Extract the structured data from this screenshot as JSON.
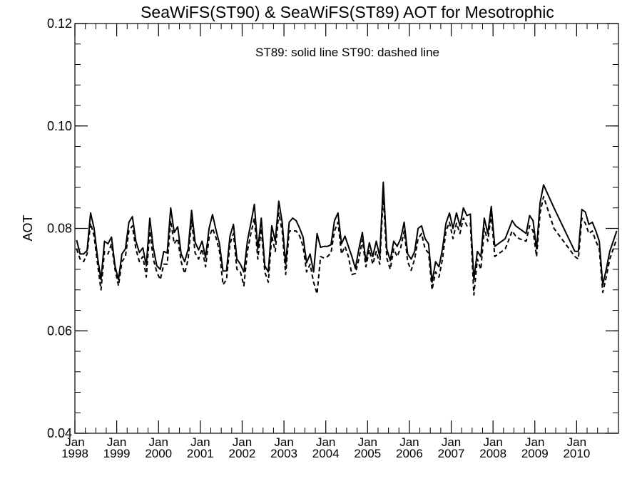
{
  "chart_data": {
    "type": "line",
    "title": "SeaWiFS(ST90) & SeaWiFS(ST89)  AOT for Mesotrophic",
    "annotation": "ST89: solid line   ST90: dashed line",
    "xlabel": "",
    "ylabel": "AOT",
    "x_range": [
      "1998-01",
      "2010-12"
    ],
    "ylim": [
      0.04,
      0.12
    ],
    "y_ticks": [
      "0.04",
      "0.06",
      "0.08",
      "0.10",
      "0.12"
    ],
    "x_ticks": [
      {
        "date": "1998-01",
        "label_top": "Jan",
        "label_bottom": "1998"
      },
      {
        "date": "1999-01",
        "label_top": "Jan",
        "label_bottom": "1999"
      },
      {
        "date": "2000-01",
        "label_top": "Jan",
        "label_bottom": "2000"
      },
      {
        "date": "2001-01",
        "label_top": "Jan",
        "label_bottom": "2001"
      },
      {
        "date": "2002-01",
        "label_top": "Jan",
        "label_bottom": "2002"
      },
      {
        "date": "2003-01",
        "label_top": "Jan",
        "label_bottom": "2003"
      },
      {
        "date": "2004-01",
        "label_top": "Jan",
        "label_bottom": "2004"
      },
      {
        "date": "2005-01",
        "label_top": "Jan",
        "label_bottom": "2005"
      },
      {
        "date": "2006-01",
        "label_top": "Jan",
        "label_bottom": "2006"
      },
      {
        "date": "2007-01",
        "label_top": "Jan",
        "label_bottom": "2007"
      },
      {
        "date": "2008-01",
        "label_top": "Jan",
        "label_bottom": "2008"
      },
      {
        "date": "2009-01",
        "label_top": "Jan",
        "label_bottom": "2009"
      },
      {
        "date": "2010-01",
        "label_top": "Jan",
        "label_bottom": "2010"
      }
    ],
    "grid": false,
    "legend": "none",
    "series": [
      {
        "name": "ST89",
        "style": "solid",
        "color": "#000000",
        "x": [
          "1998-01",
          "1998-02",
          "1998-03",
          "1998-04",
          "1998-05",
          "1998-06",
          "1998-07",
          "1998-08",
          "1998-09",
          "1998-10",
          "1998-11",
          "1998-12",
          "1999-01",
          "1999-02",
          "1999-03",
          "1999-04",
          "1999-05",
          "1999-06",
          "1999-07",
          "1999-08",
          "1999-09",
          "1999-10",
          "1999-11",
          "1999-12",
          "2000-01",
          "2000-02",
          "2000-03",
          "2000-04",
          "2000-05",
          "2000-06",
          "2000-07",
          "2000-08",
          "2000-09",
          "2000-10",
          "2000-11",
          "2000-12",
          "2001-01",
          "2001-02",
          "2001-03",
          "2001-04",
          "2001-05",
          "2001-06",
          "2001-07",
          "2001-08",
          "2001-09",
          "2001-10",
          "2001-11",
          "2001-12",
          "2002-01",
          "2002-02",
          "2002-03",
          "2002-04",
          "2002-05",
          "2002-06",
          "2002-07",
          "2002-08",
          "2002-09",
          "2002-10",
          "2002-11",
          "2002-12",
          "2003-01",
          "2003-02",
          "2003-03",
          "2003-04",
          "2003-05",
          "2003-06",
          "2003-07",
          "2003-08",
          "2003-09",
          "2003-10",
          "2003-11",
          "2003-12",
          "2004-01",
          "2004-02",
          "2004-03",
          "2004-04",
          "2004-05",
          "2004-06",
          "2004-07",
          "2004-08",
          "2004-09",
          "2004-10",
          "2004-11",
          "2004-12",
          "2005-01",
          "2005-02",
          "2005-03",
          "2005-04",
          "2005-05",
          "2005-06",
          "2005-07",
          "2005-08",
          "2005-09",
          "2005-10",
          "2005-11",
          "2005-12",
          "2006-01",
          "2006-02",
          "2006-03",
          "2006-04",
          "2006-05",
          "2006-06",
          "2006-07",
          "2006-08",
          "2006-09",
          "2006-10",
          "2006-11",
          "2006-12",
          "2007-01",
          "2007-02",
          "2007-03",
          "2007-04",
          "2007-05",
          "2007-06",
          "2007-07",
          "2007-08",
          "2007-09",
          "2007-10",
          "2007-11",
          "2007-12",
          "2008-01",
          "2008-04",
          "2008-06",
          "2008-07",
          "2008-08",
          "2008-10",
          "2008-11",
          "2008-12",
          "2009-01",
          "2009-02",
          "2009-03",
          "2009-06",
          "2009-12",
          "2010-01",
          "2010-02",
          "2010-03",
          "2010-04",
          "2010-05",
          "2010-06",
          "2010-07",
          "2010-08",
          "2010-09",
          "2010-10",
          "2010-11",
          "2010-12"
        ],
        "y": [
          0.0777,
          0.075,
          0.075,
          0.0757,
          0.083,
          0.08,
          0.0743,
          0.07,
          0.0775,
          0.077,
          0.0783,
          0.0727,
          0.07,
          0.075,
          0.076,
          0.0812,
          0.0823,
          0.0775,
          0.0753,
          0.0762,
          0.0727,
          0.082,
          0.0762,
          0.0727,
          0.072,
          0.0755,
          0.0752,
          0.084,
          0.0792,
          0.0803,
          0.075,
          0.0735,
          0.076,
          0.0835,
          0.0773,
          0.0758,
          0.0775,
          0.0743,
          0.08,
          0.0827,
          0.0797,
          0.077,
          0.0717,
          0.0717,
          0.0785,
          0.0808,
          0.074,
          0.073,
          0.0715,
          0.0775,
          0.081,
          0.0847,
          0.076,
          0.082,
          0.0727,
          0.0715,
          0.0805,
          0.0775,
          0.0853,
          0.0812,
          0.073,
          0.0812,
          0.082,
          0.0815,
          0.08,
          0.0783,
          0.0733,
          0.075,
          0.0715,
          0.079,
          0.0763,
          0.0765,
          0.0765,
          0.0768,
          0.0815,
          0.083,
          0.077,
          0.0785,
          0.0765,
          0.0745,
          0.0722,
          0.076,
          0.0792,
          0.0735,
          0.0772,
          0.0745,
          0.0775,
          0.0745,
          0.089,
          0.076,
          0.0737,
          0.0775,
          0.0765,
          0.078,
          0.0812,
          0.075,
          0.074,
          0.0755,
          0.08,
          0.0805,
          0.078,
          0.077,
          0.0695,
          0.0735,
          0.0725,
          0.076,
          0.081,
          0.083,
          0.08,
          0.083,
          0.0805,
          0.084,
          0.0825,
          0.0828,
          0.07,
          0.0755,
          0.0745,
          0.082,
          0.079,
          0.0843,
          0.0765,
          0.078,
          0.0815,
          0.0805,
          0.08,
          0.079,
          0.0825,
          0.0815,
          0.076,
          0.085,
          0.0885,
          0.084,
          0.0755,
          0.0755,
          0.0837,
          0.0832,
          0.0808,
          0.0812,
          0.0795,
          0.0775,
          0.069,
          0.072,
          0.0755,
          0.0775,
          0.0795
        ]
      },
      {
        "name": "ST90",
        "style": "dashed",
        "color": "#000000",
        "x": [
          "1998-01",
          "1998-02",
          "1998-03",
          "1998-04",
          "1998-05",
          "1998-06",
          "1998-07",
          "1998-08",
          "1998-09",
          "1998-10",
          "1998-11",
          "1998-12",
          "1999-01",
          "1999-02",
          "1999-03",
          "1999-04",
          "1999-05",
          "1999-06",
          "1999-07",
          "1999-08",
          "1999-09",
          "1999-10",
          "1999-11",
          "1999-12",
          "2000-01",
          "2000-02",
          "2000-03",
          "2000-04",
          "2000-05",
          "2000-06",
          "2000-07",
          "2000-08",
          "2000-09",
          "2000-10",
          "2000-11",
          "2000-12",
          "2001-01",
          "2001-02",
          "2001-03",
          "2001-04",
          "2001-05",
          "2001-06",
          "2001-07",
          "2001-08",
          "2001-09",
          "2001-10",
          "2001-11",
          "2001-12",
          "2002-01",
          "2002-02",
          "2002-03",
          "2002-04",
          "2002-05",
          "2002-06",
          "2002-07",
          "2002-08",
          "2002-09",
          "2002-10",
          "2002-11",
          "2002-12",
          "2003-01",
          "2003-02",
          "2003-03",
          "2003-04",
          "2003-05",
          "2003-06",
          "2003-07",
          "2003-08",
          "2003-09",
          "2003-10",
          "2003-11",
          "2003-12",
          "2004-01",
          "2004-02",
          "2004-03",
          "2004-04",
          "2004-05",
          "2004-06",
          "2004-07",
          "2004-08",
          "2004-09",
          "2004-10",
          "2004-11",
          "2004-12",
          "2005-01",
          "2005-02",
          "2005-03",
          "2005-04",
          "2005-05",
          "2005-06",
          "2005-07",
          "2005-08",
          "2005-09",
          "2005-10",
          "2005-11",
          "2005-12",
          "2006-01",
          "2006-02",
          "2006-03",
          "2006-04",
          "2006-05",
          "2006-06",
          "2006-07",
          "2006-08",
          "2006-09",
          "2006-10",
          "2006-11",
          "2006-12",
          "2007-01",
          "2007-02",
          "2007-03",
          "2007-04",
          "2007-05",
          "2007-06",
          "2007-07",
          "2007-08",
          "2007-09",
          "2007-10",
          "2007-11",
          "2007-12",
          "2008-01",
          "2008-04",
          "2008-06",
          "2008-07",
          "2008-08",
          "2008-10",
          "2008-11",
          "2008-12",
          "2009-01",
          "2009-02",
          "2009-03",
          "2009-06",
          "2009-12",
          "2010-01",
          "2010-02",
          "2010-03",
          "2010-04",
          "2010-05",
          "2010-06",
          "2010-07",
          "2010-08",
          "2010-09",
          "2010-10",
          "2010-11",
          "2010-12"
        ],
        "y": [
          0.076,
          0.074,
          0.0735,
          0.075,
          0.081,
          0.0785,
          0.073,
          0.068,
          0.0755,
          0.075,
          0.077,
          0.072,
          0.0688,
          0.0735,
          0.0745,
          0.0795,
          0.0805,
          0.076,
          0.0735,
          0.0745,
          0.0705,
          0.0795,
          0.074,
          0.0715,
          0.07,
          0.073,
          0.073,
          0.0815,
          0.077,
          0.078,
          0.0735,
          0.0712,
          0.074,
          0.0818,
          0.0752,
          0.074,
          0.076,
          0.0725,
          0.0782,
          0.08,
          0.0782,
          0.0755,
          0.069,
          0.07,
          0.077,
          0.079,
          0.072,
          0.0715,
          0.0688,
          0.0755,
          0.079,
          0.082,
          0.074,
          0.08,
          0.0715,
          0.0695,
          0.0785,
          0.0755,
          0.083,
          0.0795,
          0.071,
          0.0795,
          0.0795,
          0.0795,
          0.0785,
          0.0765,
          0.0715,
          0.073,
          0.0695,
          0.0672,
          0.0745,
          0.0742,
          0.0745,
          0.0752,
          0.0795,
          0.0812,
          0.075,
          0.0765,
          0.0745,
          0.071,
          0.0712,
          0.074,
          0.0778,
          0.0725,
          0.0758,
          0.073,
          0.0755,
          0.073,
          0.0865,
          0.0742,
          0.072,
          0.076,
          0.0745,
          0.0762,
          0.0795,
          0.0735,
          0.0718,
          0.074,
          0.078,
          0.079,
          0.076,
          0.0752,
          0.068,
          0.0715,
          0.0705,
          0.074,
          0.0795,
          0.0812,
          0.078,
          0.081,
          0.079,
          0.082,
          0.0805,
          0.081,
          0.067,
          0.074,
          0.072,
          0.08,
          0.0775,
          0.0828,
          0.0745,
          0.076,
          0.0795,
          0.0785,
          0.078,
          0.0775,
          0.0805,
          0.0795,
          0.0745,
          0.083,
          0.0862,
          0.08,
          0.0745,
          0.074,
          0.082,
          0.081,
          0.079,
          0.0795,
          0.0775,
          0.076,
          0.0675,
          0.0705,
          0.074,
          0.076,
          0.078
        ]
      }
    ]
  }
}
